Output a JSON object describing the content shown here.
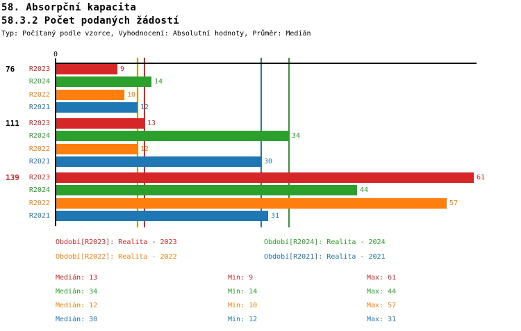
{
  "header": {
    "title1": "58. Absorpční kapacita",
    "title2": "58.3.2 Počet podaných žádostí",
    "meta": "Typ: Počítaný podle vzorce, Vyhodnocení: Absolutní hodnoty, Průměr: Medián"
  },
  "colors": {
    "R2023": "#d62728",
    "R2024": "#2ca02c",
    "R2022": "#ff7f0e",
    "R2021": "#1f77b4",
    "axis": "#000000",
    "highlight_group_label": "#d62728"
  },
  "chart_data": {
    "type": "bar",
    "orientation": "horizontal",
    "title": "58.3.2 Počet podaných žádostí",
    "axis_origin_label": "0",
    "x_axis": {
      "origin": 0,
      "visible_tick_labels": [
        "0"
      ],
      "approx_max": 61
    },
    "series_order": [
      "R2023",
      "R2024",
      "R2022",
      "R2021"
    ],
    "groups": [
      {
        "label": "76",
        "label_color": "#000000",
        "values": {
          "R2023": 9,
          "R2024": 14,
          "R2022": 10,
          "R2021": 12
        }
      },
      {
        "label": "111",
        "label_color": "#000000",
        "values": {
          "R2023": 13,
          "R2024": 34,
          "R2022": 12,
          "R2021": 30
        }
      },
      {
        "label": "139",
        "label_color": "#d62728",
        "values": {
          "R2023": 61,
          "R2024": 44,
          "R2022": 57,
          "R2021": 31
        }
      }
    ],
    "median_lines": [
      {
        "series": "R2023",
        "value": 13
      },
      {
        "series": "R2024",
        "value": 34
      },
      {
        "series": "R2022",
        "value": 12
      },
      {
        "series": "R2021",
        "value": 30
      }
    ]
  },
  "legend": [
    {
      "series": "R2023",
      "label": "Období[R2023]: Realita - 2023",
      "color": "#d62728"
    },
    {
      "series": "R2024",
      "label": "Období[R2024]: Realita - 2024",
      "color": "#2ca02c"
    },
    {
      "series": "R2022",
      "label": "Období[R2022]: Realita - 2022",
      "color": "#ff7f0e"
    },
    {
      "series": "R2021",
      "label": "Období[R2021]: Realita - 2021",
      "color": "#1f77b4"
    }
  ],
  "stats": [
    {
      "series": "R2023",
      "color": "#d62728",
      "median": "Medián: 13",
      "min": "Min: 9",
      "max": "Max: 61"
    },
    {
      "series": "R2024",
      "color": "#2ca02c",
      "median": "Medián: 34",
      "min": "Min: 14",
      "max": "Max: 44"
    },
    {
      "series": "R2022",
      "color": "#ff7f0e",
      "median": "Medián: 12",
      "min": "Min: 10",
      "max": "Max: 57"
    },
    {
      "series": "R2021",
      "color": "#1f77b4",
      "median": "Medián: 30",
      "min": "Min: 12",
      "max": "Max: 31"
    }
  ]
}
